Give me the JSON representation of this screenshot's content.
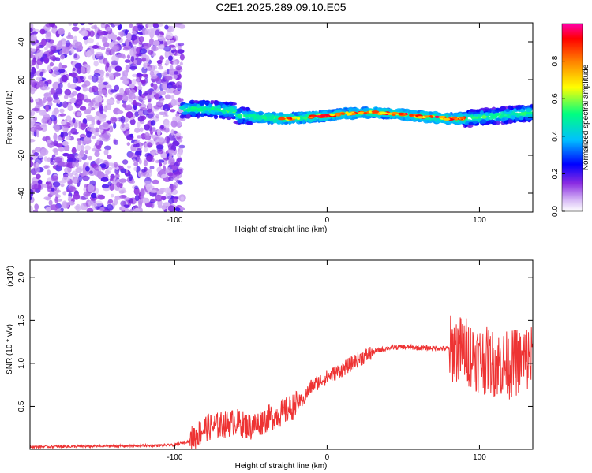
{
  "title": "C2E1.2025.289.09.10.E05",
  "colors": {
    "snr_line": "#ee3333",
    "axis": "#000000"
  },
  "chart_data": [
    {
      "type": "heatmap",
      "xlabel": "Height of straight line (km)",
      "ylabel": "Frequency (Hz)",
      "xlim": [
        -195,
        135
      ],
      "ylim": [
        -50,
        50
      ],
      "x_ticks": [
        -100,
        0,
        100
      ],
      "x_tick_labels": [
        "-100",
        "0",
        "100"
      ],
      "y_ticks": [
        -40,
        -20,
        0,
        20,
        40
      ],
      "y_tick_labels": [
        "-40",
        "-20",
        "0",
        "20",
        "40"
      ],
      "colorbar": {
        "label": "Normalized spectral amplitude",
        "range": [
          0,
          1
        ],
        "ticks": [
          0.0,
          0.2,
          0.4,
          0.6,
          0.8
        ],
        "tick_labels": [
          "0.0",
          "0.2",
          "0.4",
          "0.6",
          "0.8"
        ],
        "colormap": [
          "#ffffff",
          "#8a2be2",
          "#0000ff",
          "#00c0ff",
          "#00ff80",
          "#ffff00",
          "#ff8000",
          "#ff0000",
          "#ff00aa"
        ]
      },
      "regions": [
        {
          "name": "noise",
          "x_range": [
            -195,
            -95
          ],
          "freq_range": [
            -50,
            50
          ],
          "amplitude": [
            0.05,
            0.2
          ]
        },
        {
          "name": "signal-band",
          "x_range": [
            -95,
            135
          ],
          "center_freq": 1,
          "bandwidth": 8,
          "amplitude": [
            0.3,
            1.0
          ]
        }
      ]
    },
    {
      "type": "line",
      "xlabel": "Height of straight line (km)",
      "ylabel": "SNR (10 * v/v)",
      "y_scale_label": "(x10",
      "y_scale_exp": "4",
      "xlim": [
        -195,
        135
      ],
      "ylim": [
        0,
        22000
      ],
      "x_ticks": [
        -100,
        0,
        100
      ],
      "x_tick_labels": [
        "-100",
        "0",
        "100"
      ],
      "y_ticks": [
        5000,
        10000,
        15000,
        20000
      ],
      "y_tick_labels": [
        "0.5",
        "1.0",
        "1.5",
        "2.0"
      ],
      "series": [
        {
          "name": "SNR",
          "x": [
            -195,
            -160,
            -130,
            -100,
            -90,
            -80,
            -70,
            -60,
            -50,
            -40,
            -30,
            -20,
            -15,
            -10,
            0,
            10,
            20,
            30,
            40,
            50,
            60,
            70,
            80,
            90,
            95,
            100,
            110,
            120,
            125,
            130,
            135
          ],
          "values": [
            300,
            350,
            400,
            500,
            1000,
            2500,
            2800,
            3200,
            2600,
            3500,
            4200,
            5200,
            6000,
            7400,
            8400,
            9300,
            10400,
            11300,
            11800,
            11900,
            11800,
            11800,
            11700,
            11600,
            11000,
            10500,
            10000,
            9800,
            10200,
            10500,
            10800
          ]
        }
      ]
    }
  ]
}
